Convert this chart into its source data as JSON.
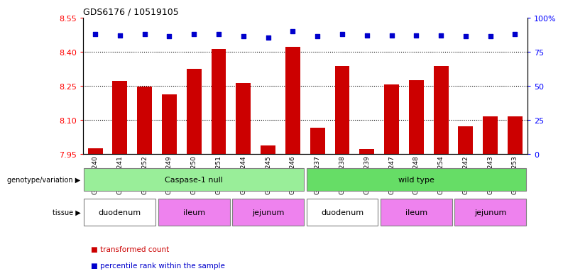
{
  "title": "GDS6176 / 10519105",
  "samples": [
    "GSM805240",
    "GSM805241",
    "GSM805252",
    "GSM805249",
    "GSM805250",
    "GSM805251",
    "GSM805244",
    "GSM805245",
    "GSM805246",
    "GSM805237",
    "GSM805238",
    "GSM805239",
    "GSM805247",
    "GSM805248",
    "GSM805254",
    "GSM805242",
    "GSM805243",
    "GSM805253"
  ],
  "bar_values": [
    7.975,
    8.27,
    8.245,
    8.21,
    8.325,
    8.41,
    8.26,
    7.985,
    8.42,
    8.065,
    8.335,
    7.97,
    8.255,
    8.275,
    8.335,
    8.07,
    8.115,
    8.115
  ],
  "percentile_values": [
    88,
    87,
    88,
    86,
    88,
    88,
    86,
    85,
    90,
    86,
    88,
    87,
    87,
    87,
    87,
    86,
    86,
    88
  ],
  "ylim_left": [
    7.95,
    8.55
  ],
  "ylim_right": [
    0,
    100
  ],
  "yticks_left": [
    7.95,
    8.1,
    8.25,
    8.4,
    8.55
  ],
  "yticks_right": [
    0,
    25,
    50,
    75,
    100
  ],
  "ytick_right_labels": [
    "0",
    "25",
    "50",
    "75",
    "100%"
  ],
  "grid_values": [
    8.1,
    8.25,
    8.4
  ],
  "bar_color": "#cc0000",
  "dot_color": "#0000cc",
  "bar_bottom": 7.95,
  "geno_configs": [
    {
      "start": 0,
      "end": 8,
      "label": "Caspase-1 null",
      "color": "#99ee99"
    },
    {
      "start": 9,
      "end": 17,
      "label": "wild type",
      "color": "#66dd66"
    }
  ],
  "tissue_configs": [
    {
      "start": 0,
      "end": 2,
      "label": "duodenum",
      "color": "#ffffff"
    },
    {
      "start": 3,
      "end": 5,
      "label": "ileum",
      "color": "#ee82ee"
    },
    {
      "start": 6,
      "end": 8,
      "label": "jejunum",
      "color": "#ee82ee"
    },
    {
      "start": 9,
      "end": 11,
      "label": "duodenum",
      "color": "#ffffff"
    },
    {
      "start": 12,
      "end": 14,
      "label": "ileum",
      "color": "#ee82ee"
    },
    {
      "start": 15,
      "end": 17,
      "label": "jejunum",
      "color": "#ee82ee"
    }
  ],
  "background_color": "#ffffff"
}
